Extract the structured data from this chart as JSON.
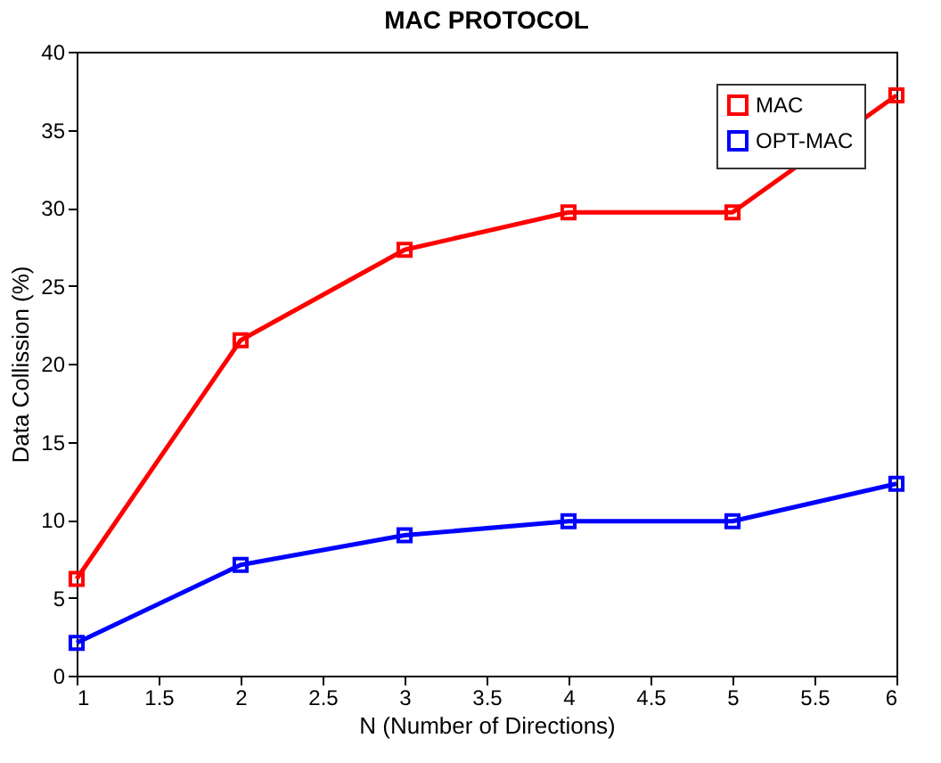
{
  "chart_data": {
    "type": "line",
    "title": "MAC PROTOCOL",
    "xlabel": "N (Number of Directions)",
    "ylabel": "Data Collission (%)",
    "x": [
      1,
      2,
      3,
      4,
      5,
      6
    ],
    "series": [
      {
        "name": "MAC",
        "color": "#ff0000",
        "values": [
          6.2,
          21.5,
          27.3,
          29.7,
          29.7,
          37.2
        ]
      },
      {
        "name": "OPT-MAC",
        "color": "#0000ff",
        "values": [
          2.1,
          7.1,
          9.0,
          9.9,
          9.9,
          12.3
        ]
      }
    ],
    "xlim": [
      1,
      6
    ],
    "xticks": [
      1,
      1.5,
      2,
      2.5,
      3,
      3.5,
      4,
      4.5,
      5,
      5.5,
      6
    ],
    "ylim": [
      0,
      40
    ],
    "yticks": [
      0,
      5,
      10,
      15,
      20,
      25,
      30,
      35,
      40
    ],
    "grid": false,
    "legend": "top right",
    "marker": "square",
    "line_style": "solid"
  }
}
